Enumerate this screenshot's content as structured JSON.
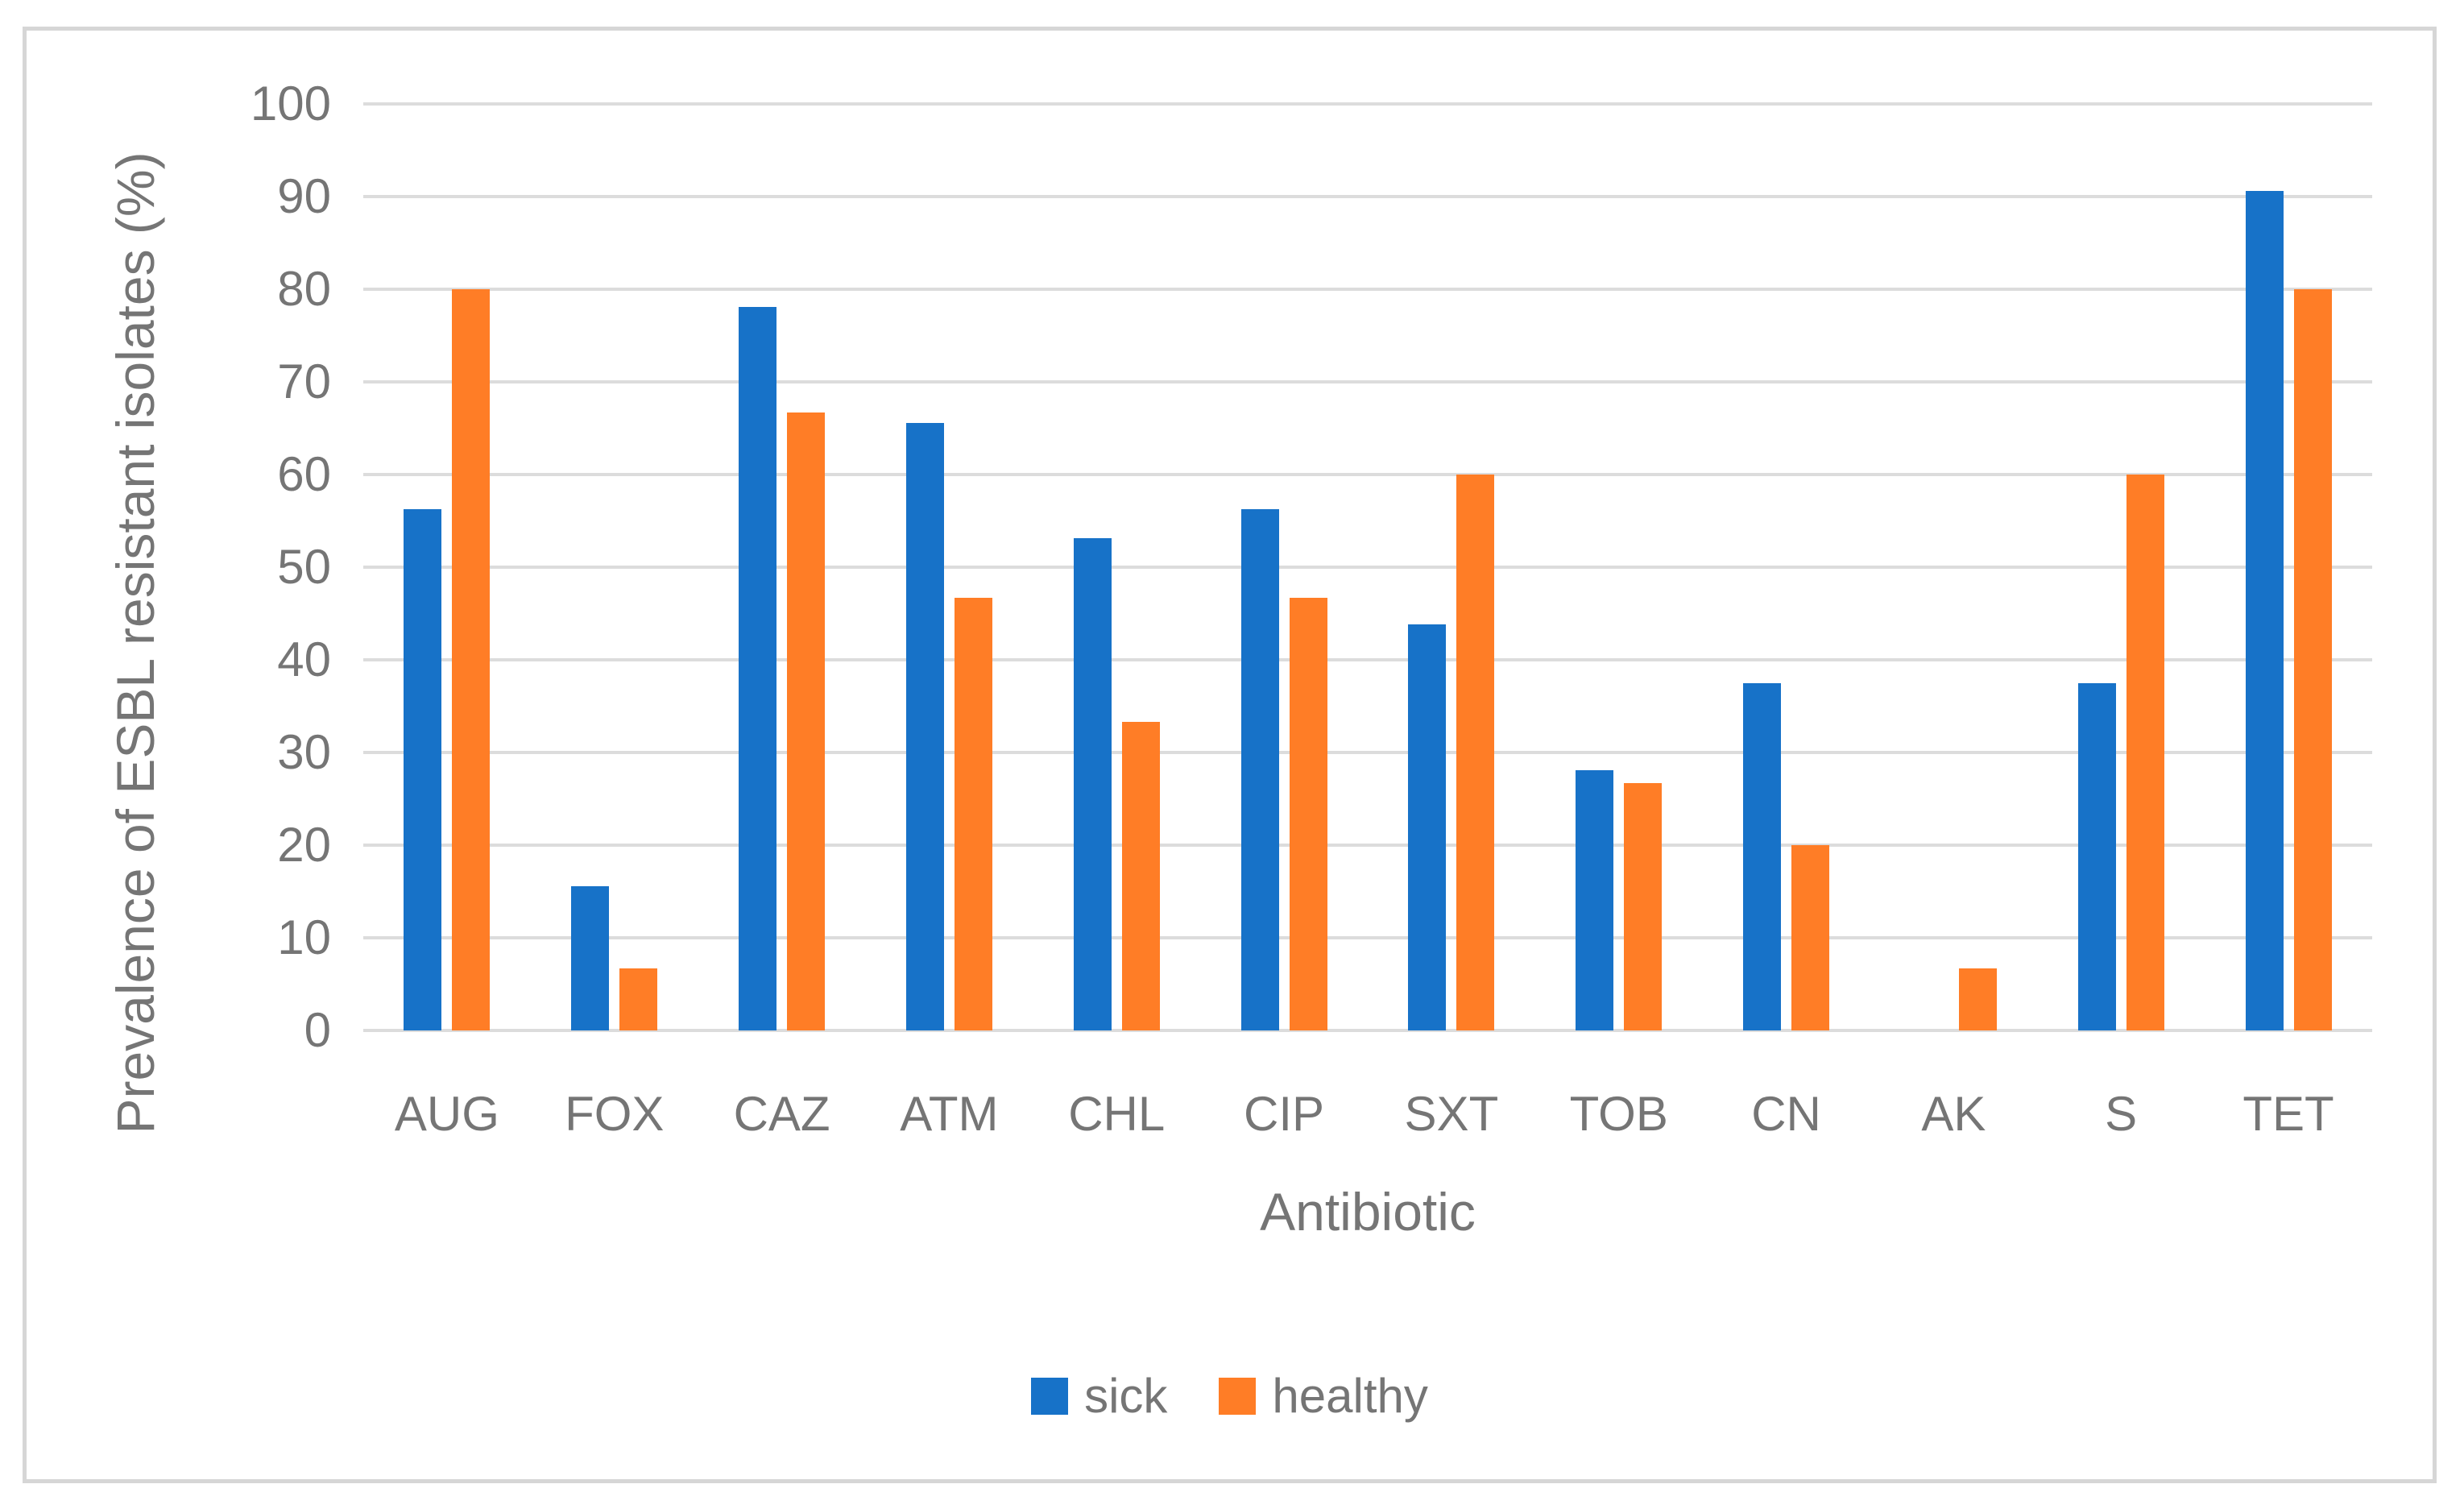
{
  "chart_data": {
    "type": "bar",
    "title": "",
    "xlabel": "Antibiotic",
    "ylabel": "Prevalence of ESBL resistant isolates (%)",
    "categories": [
      "AUG",
      "FOX",
      "CAZ",
      "ATM",
      "CHL",
      "CIP",
      "SXT",
      "TOB",
      "CN",
      "AK",
      "S",
      "TET"
    ],
    "series": [
      {
        "name": "sick",
        "color": "#1772C8",
        "values": [
          56.3,
          15.6,
          78.1,
          65.6,
          53.1,
          56.3,
          43.8,
          28.1,
          37.5,
          0,
          37.5,
          90.6
        ]
      },
      {
        "name": "healthy",
        "color": "#FF7D26",
        "values": [
          80,
          6.7,
          66.7,
          46.7,
          33.3,
          46.7,
          60,
          26.7,
          20,
          6.7,
          60,
          80
        ]
      }
    ],
    "ylim": [
      0,
      100
    ],
    "yticks": [
      0,
      10,
      20,
      30,
      40,
      50,
      60,
      70,
      80,
      90,
      100
    ],
    "grid": "horizontal",
    "legend_position": "bottom"
  },
  "styles": {
    "grid_color": "#DCDCDC",
    "axis_text_color": "#757575",
    "border_color": "#D6D6D6",
    "background": "#FFFFFF"
  }
}
